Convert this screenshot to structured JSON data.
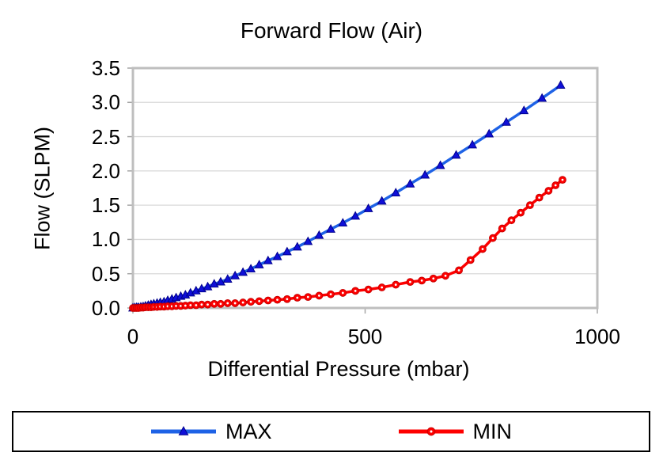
{
  "chart_data": {
    "type": "line",
    "title": "Forward Flow (Air)",
    "xlabel": "Differential Pressure (mbar)",
    "ylabel": "Flow (SLPM)",
    "xlim": [
      0,
      1000
    ],
    "ylim": [
      0,
      3.5
    ],
    "xticks": [
      0,
      500,
      1000
    ],
    "yticks": [
      0.0,
      0.5,
      1.0,
      1.5,
      2.0,
      2.5,
      3.0,
      3.5
    ],
    "grid": "horizontal",
    "legend_position": "bottom-box",
    "colors": {
      "plot_border": "#BEBEBE",
      "gridline": "#D9D9D9",
      "tick": "#A6A6A6",
      "text": "#000000",
      "legend_border": "#000000",
      "background": "#FFFFFF"
    },
    "series": [
      {
        "name": "MAX",
        "marker": "triangle",
        "line_color": "#1E62E6",
        "marker_fill": "#0F0FD8",
        "marker_edge": "#00008C",
        "x": [
          0,
          4,
          8,
          12,
          17,
          22,
          27,
          33,
          39,
          45,
          52,
          59,
          67,
          75,
          84,
          93,
          103,
          113,
          124,
          136,
          148,
          161,
          175,
          189,
          204,
          220,
          237,
          254,
          272,
          291,
          311,
          332,
          354,
          377,
          401,
          426,
          452,
          479,
          507,
          536,
          566,
          597,
          629,
          662,
          696,
          731,
          767,
          804,
          842,
          881,
          921
        ],
        "y": [
          0,
          0.005,
          0.01,
          0.01,
          0.015,
          0.02,
          0.03,
          0.04,
          0.05,
          0.06,
          0.07,
          0.08,
          0.09,
          0.11,
          0.13,
          0.15,
          0.17,
          0.19,
          0.22,
          0.25,
          0.28,
          0.31,
          0.35,
          0.38,
          0.42,
          0.47,
          0.52,
          0.57,
          0.63,
          0.69,
          0.75,
          0.82,
          0.89,
          0.97,
          1.06,
          1.15,
          1.24,
          1.34,
          1.45,
          1.56,
          1.68,
          1.81,
          1.94,
          2.08,
          2.23,
          2.38,
          2.54,
          2.71,
          2.88,
          3.06,
          3.25
        ]
      },
      {
        "name": "MIN",
        "marker": "circle",
        "line_color": "#FE0000",
        "marker_fill": "#FE0000",
        "marker_edge": "#C80000",
        "marker_center": "#FFFFFF",
        "x": [
          0,
          4,
          8,
          12,
          17,
          22,
          27,
          33,
          39,
          45,
          52,
          59,
          67,
          75,
          84,
          93,
          103,
          113,
          124,
          136,
          148,
          161,
          175,
          189,
          204,
          220,
          237,
          254,
          272,
          291,
          311,
          332,
          354,
          377,
          401,
          426,
          452,
          479,
          507,
          536,
          566,
          597,
          622,
          647,
          673,
          702,
          727,
          753,
          775,
          795,
          815,
          835,
          855,
          875,
          895,
          910,
          925
        ],
        "y": [
          0,
          0,
          0,
          0,
          0.005,
          0.005,
          0.01,
          0.01,
          0.01,
          0.015,
          0.015,
          0.02,
          0.02,
          0.025,
          0.025,
          0.03,
          0.03,
          0.035,
          0.04,
          0.04,
          0.05,
          0.05,
          0.06,
          0.06,
          0.07,
          0.07,
          0.08,
          0.09,
          0.1,
          0.11,
          0.12,
          0.13,
          0.15,
          0.16,
          0.18,
          0.2,
          0.22,
          0.25,
          0.27,
          0.3,
          0.34,
          0.38,
          0.4,
          0.43,
          0.47,
          0.55,
          0.7,
          0.86,
          1.02,
          1.16,
          1.28,
          1.39,
          1.5,
          1.61,
          1.71,
          1.79,
          1.87
        ]
      }
    ]
  }
}
